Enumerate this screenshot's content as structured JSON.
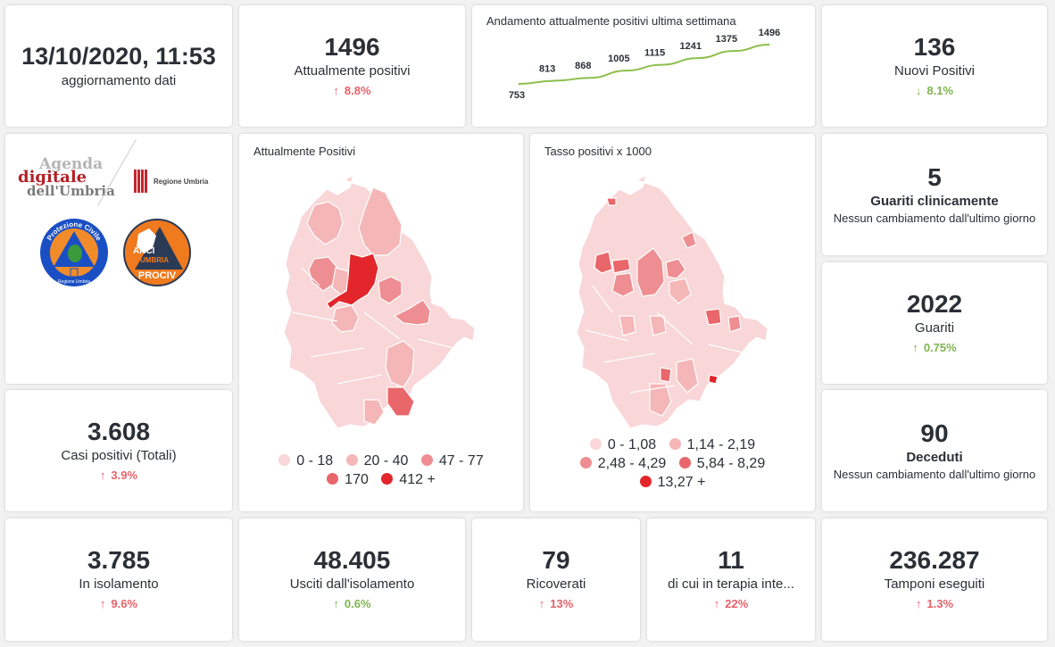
{
  "update": {
    "datetime": "13/10/2020, 11:53",
    "label": "aggiornamento dati"
  },
  "colors": {
    "up_bad": "#e5626a",
    "good": "#7fb550",
    "line": "#8cbf4c",
    "text": "#2b2f36"
  },
  "kpis": {
    "attualmente_positivi": {
      "value": "1496",
      "label": "Attualmente positivi",
      "delta": "8.8%",
      "arrow": "↑",
      "trend": "red"
    },
    "nuovi_positivi": {
      "value": "136",
      "label": "Nuovi Positivi",
      "delta": "8.1%",
      "arrow": "↓",
      "trend": "green"
    },
    "guariti_clinicamente": {
      "value": "5",
      "label": "Guariti clinicamente",
      "note": "Nessun cambiamento dall'ultimo giorno"
    },
    "guariti": {
      "value": "2022",
      "label": "Guariti",
      "delta": "0.75%",
      "arrow": "↑",
      "trend": "green"
    },
    "deceduti": {
      "value": "90",
      "label": "Deceduti",
      "note": "Nessun cambiamento dall'ultimo giorno"
    },
    "casi_totali": {
      "value": "3.608",
      "label": "Casi positivi (Totali)",
      "delta": "3.9%",
      "arrow": "↑",
      "trend": "red"
    },
    "in_isolamento": {
      "value": "3.785",
      "label": "In isolamento",
      "delta": "9.6%",
      "arrow": "↑",
      "trend": "red"
    },
    "usciti_isolamento": {
      "value": "48.405",
      "label": "Usciti dall'isolamento",
      "delta": "0.6%",
      "arrow": "↑",
      "trend": "green"
    },
    "ricoverati": {
      "value": "79",
      "label": "Ricoverati",
      "delta": "13%",
      "arrow": "↑",
      "trend": "red"
    },
    "terapia_intensiva": {
      "value": "11",
      "label": "di cui in terapia inte...",
      "delta": "22%",
      "arrow": "↑",
      "trend": "red"
    },
    "tamponi": {
      "value": "236.287",
      "label": "Tamponi eseguiti",
      "delta": "1.3%",
      "arrow": "↑",
      "trend": "red"
    }
  },
  "logos": {
    "agenda": [
      "Agenda",
      "digitale",
      "dell'Umbria"
    ],
    "regione": "Regione Umbria",
    "protezione_civile": [
      "Protezione Civile",
      "Regione Umbria"
    ],
    "anci": [
      "ANCI",
      "UMBRIA",
      "PROCIV"
    ]
  },
  "chart_data": [
    {
      "type": "line",
      "title": "Andamento attualmente positivi ultima settimana",
      "values": [
        753,
        813,
        868,
        1005,
        1115,
        1241,
        1375,
        1496
      ],
      "labels": [
        "753",
        "813",
        "868",
        "1005",
        "1115",
        "1241",
        "1375",
        "1496"
      ],
      "xlabel": "",
      "ylabel": "",
      "grid": false
    },
    {
      "type": "heatmap",
      "title": "Attualmente Positivi",
      "legend": [
        {
          "label": "0 - 18",
          "color": "#f9d6d7"
        },
        {
          "label": "20 - 40",
          "color": "#f5b6b8"
        },
        {
          "label": "47 - 77",
          "color": "#ee8e92"
        },
        {
          "label": "170",
          "color": "#e9666b"
        },
        {
          "label": "412 +",
          "color": "#e2262b"
        }
      ]
    },
    {
      "type": "heatmap",
      "title": "Tasso positivi x 1000",
      "legend": [
        {
          "label": "0 - 1,08",
          "color": "#f9d6d7"
        },
        {
          "label": "1,14 - 2,19",
          "color": "#f5b6b8"
        },
        {
          "label": "2,48 - 4,29",
          "color": "#ee8e92"
        },
        {
          "label": "5,84 - 8,29",
          "color": "#e9666b"
        },
        {
          "label": "13,27 +",
          "color": "#e2262b"
        }
      ]
    }
  ]
}
